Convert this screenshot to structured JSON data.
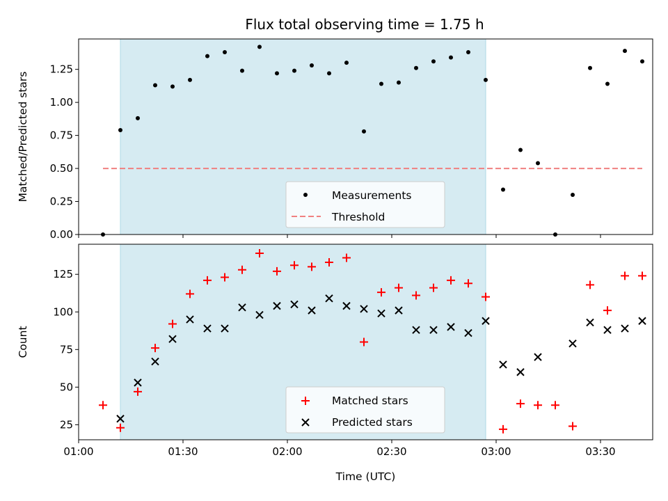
{
  "figure": {
    "title": "Flux total observing time = 1.75 h"
  },
  "chart_data": [
    {
      "type": "scatter",
      "ylabel": "Matched/Predicted stars",
      "xlim": [
        "01:00",
        "03:45"
      ],
      "ylim": [
        0,
        1.48
      ],
      "yticks": [
        0.0,
        0.25,
        0.5,
        0.75,
        1.0,
        1.25
      ],
      "ytick_labels": [
        "0.00",
        "0.25",
        "0.50",
        "0.75",
        "1.00",
        "1.25"
      ],
      "xticks": [
        "01:00",
        "01:30",
        "02:00",
        "02:30",
        "03:00",
        "03:30"
      ],
      "shaded_span": {
        "from": "01:12",
        "to": "02:57",
        "color": "#add8e6"
      },
      "series": [
        {
          "name": "Measurements",
          "marker": "dot",
          "color": "#000000",
          "x": [
            "01:07",
            "01:12",
            "01:17",
            "01:22",
            "01:27",
            "01:32",
            "01:37",
            "01:42",
            "01:47",
            "01:52",
            "01:57",
            "02:02",
            "02:07",
            "02:12",
            "02:17",
            "02:22",
            "02:27",
            "02:32",
            "02:37",
            "02:42",
            "02:47",
            "02:52",
            "02:57",
            "03:02",
            "03:07",
            "03:12",
            "03:17",
            "03:22",
            "03:27",
            "03:32",
            "03:37",
            "03:42"
          ],
          "y": [
            0.0,
            0.79,
            0.88,
            1.13,
            1.12,
            1.17,
            1.35,
            1.38,
            1.24,
            1.42,
            1.22,
            1.24,
            1.28,
            1.22,
            1.3,
            0.78,
            1.14,
            1.15,
            1.26,
            1.31,
            1.34,
            1.38,
            1.17,
            0.34,
            0.64,
            0.54,
            0.0,
            0.3,
            1.26,
            1.14,
            1.39,
            1.31
          ]
        },
        {
          "name": "Threshold",
          "marker": "dashed-line",
          "color": "#f08080",
          "x": [
            "01:07",
            "03:42"
          ],
          "y": [
            0.5,
            0.5
          ]
        }
      ],
      "legend": "lower-center"
    },
    {
      "type": "scatter",
      "xlabel": "Time (UTC)",
      "ylabel": "Count",
      "xlim": [
        "01:00",
        "03:45"
      ],
      "ylim": [
        15,
        145
      ],
      "yticks": [
        25,
        50,
        75,
        100,
        125
      ],
      "xticks": [
        "01:00",
        "01:30",
        "02:00",
        "02:30",
        "03:00",
        "03:30"
      ],
      "xtick_labels": [
        "01:00",
        "01:30",
        "02:00",
        "02:30",
        "03:00",
        "03:30"
      ],
      "shaded_span": {
        "from": "01:12",
        "to": "02:57",
        "color": "#add8e6"
      },
      "series": [
        {
          "name": "Matched stars",
          "marker": "plus",
          "color": "#ff0000",
          "x": [
            "01:07",
            "01:12",
            "01:17",
            "01:22",
            "01:27",
            "01:32",
            "01:37",
            "01:42",
            "01:47",
            "01:52",
            "01:57",
            "02:02",
            "02:07",
            "02:12",
            "02:17",
            "02:22",
            "02:27",
            "02:32",
            "02:37",
            "02:42",
            "02:47",
            "02:52",
            "02:57",
            "03:02",
            "03:07",
            "03:12",
            "03:17",
            "03:22",
            "03:27",
            "03:32",
            "03:37",
            "03:42"
          ],
          "y": [
            38,
            23,
            47,
            76,
            92,
            112,
            121,
            123,
            128,
            139,
            127,
            131,
            130,
            133,
            136,
            80,
            113,
            116,
            111,
            116,
            121,
            119,
            110,
            22,
            39,
            38,
            38,
            24,
            118,
            101,
            124,
            124
          ]
        },
        {
          "name": "Predicted stars",
          "marker": "x",
          "color": "#000000",
          "x": [
            "01:12",
            "01:17",
            "01:22",
            "01:27",
            "01:32",
            "01:37",
            "01:42",
            "01:47",
            "01:52",
            "01:57",
            "02:02",
            "02:07",
            "02:12",
            "02:17",
            "02:22",
            "02:27",
            "02:32",
            "02:37",
            "02:42",
            "02:47",
            "02:52",
            "02:57",
            "03:02",
            "03:07",
            "03:12",
            "03:22",
            "03:27",
            "03:32",
            "03:37",
            "03:42"
          ],
          "y": [
            29,
            53,
            67,
            82,
            95,
            89,
            89,
            103,
            98,
            104,
            105,
            101,
            109,
            104,
            102,
            99,
            101,
            88,
            88,
            90,
            86,
            94,
            65,
            60,
            70,
            79,
            93,
            88,
            89,
            94
          ]
        }
      ],
      "legend": "lower-center"
    }
  ]
}
